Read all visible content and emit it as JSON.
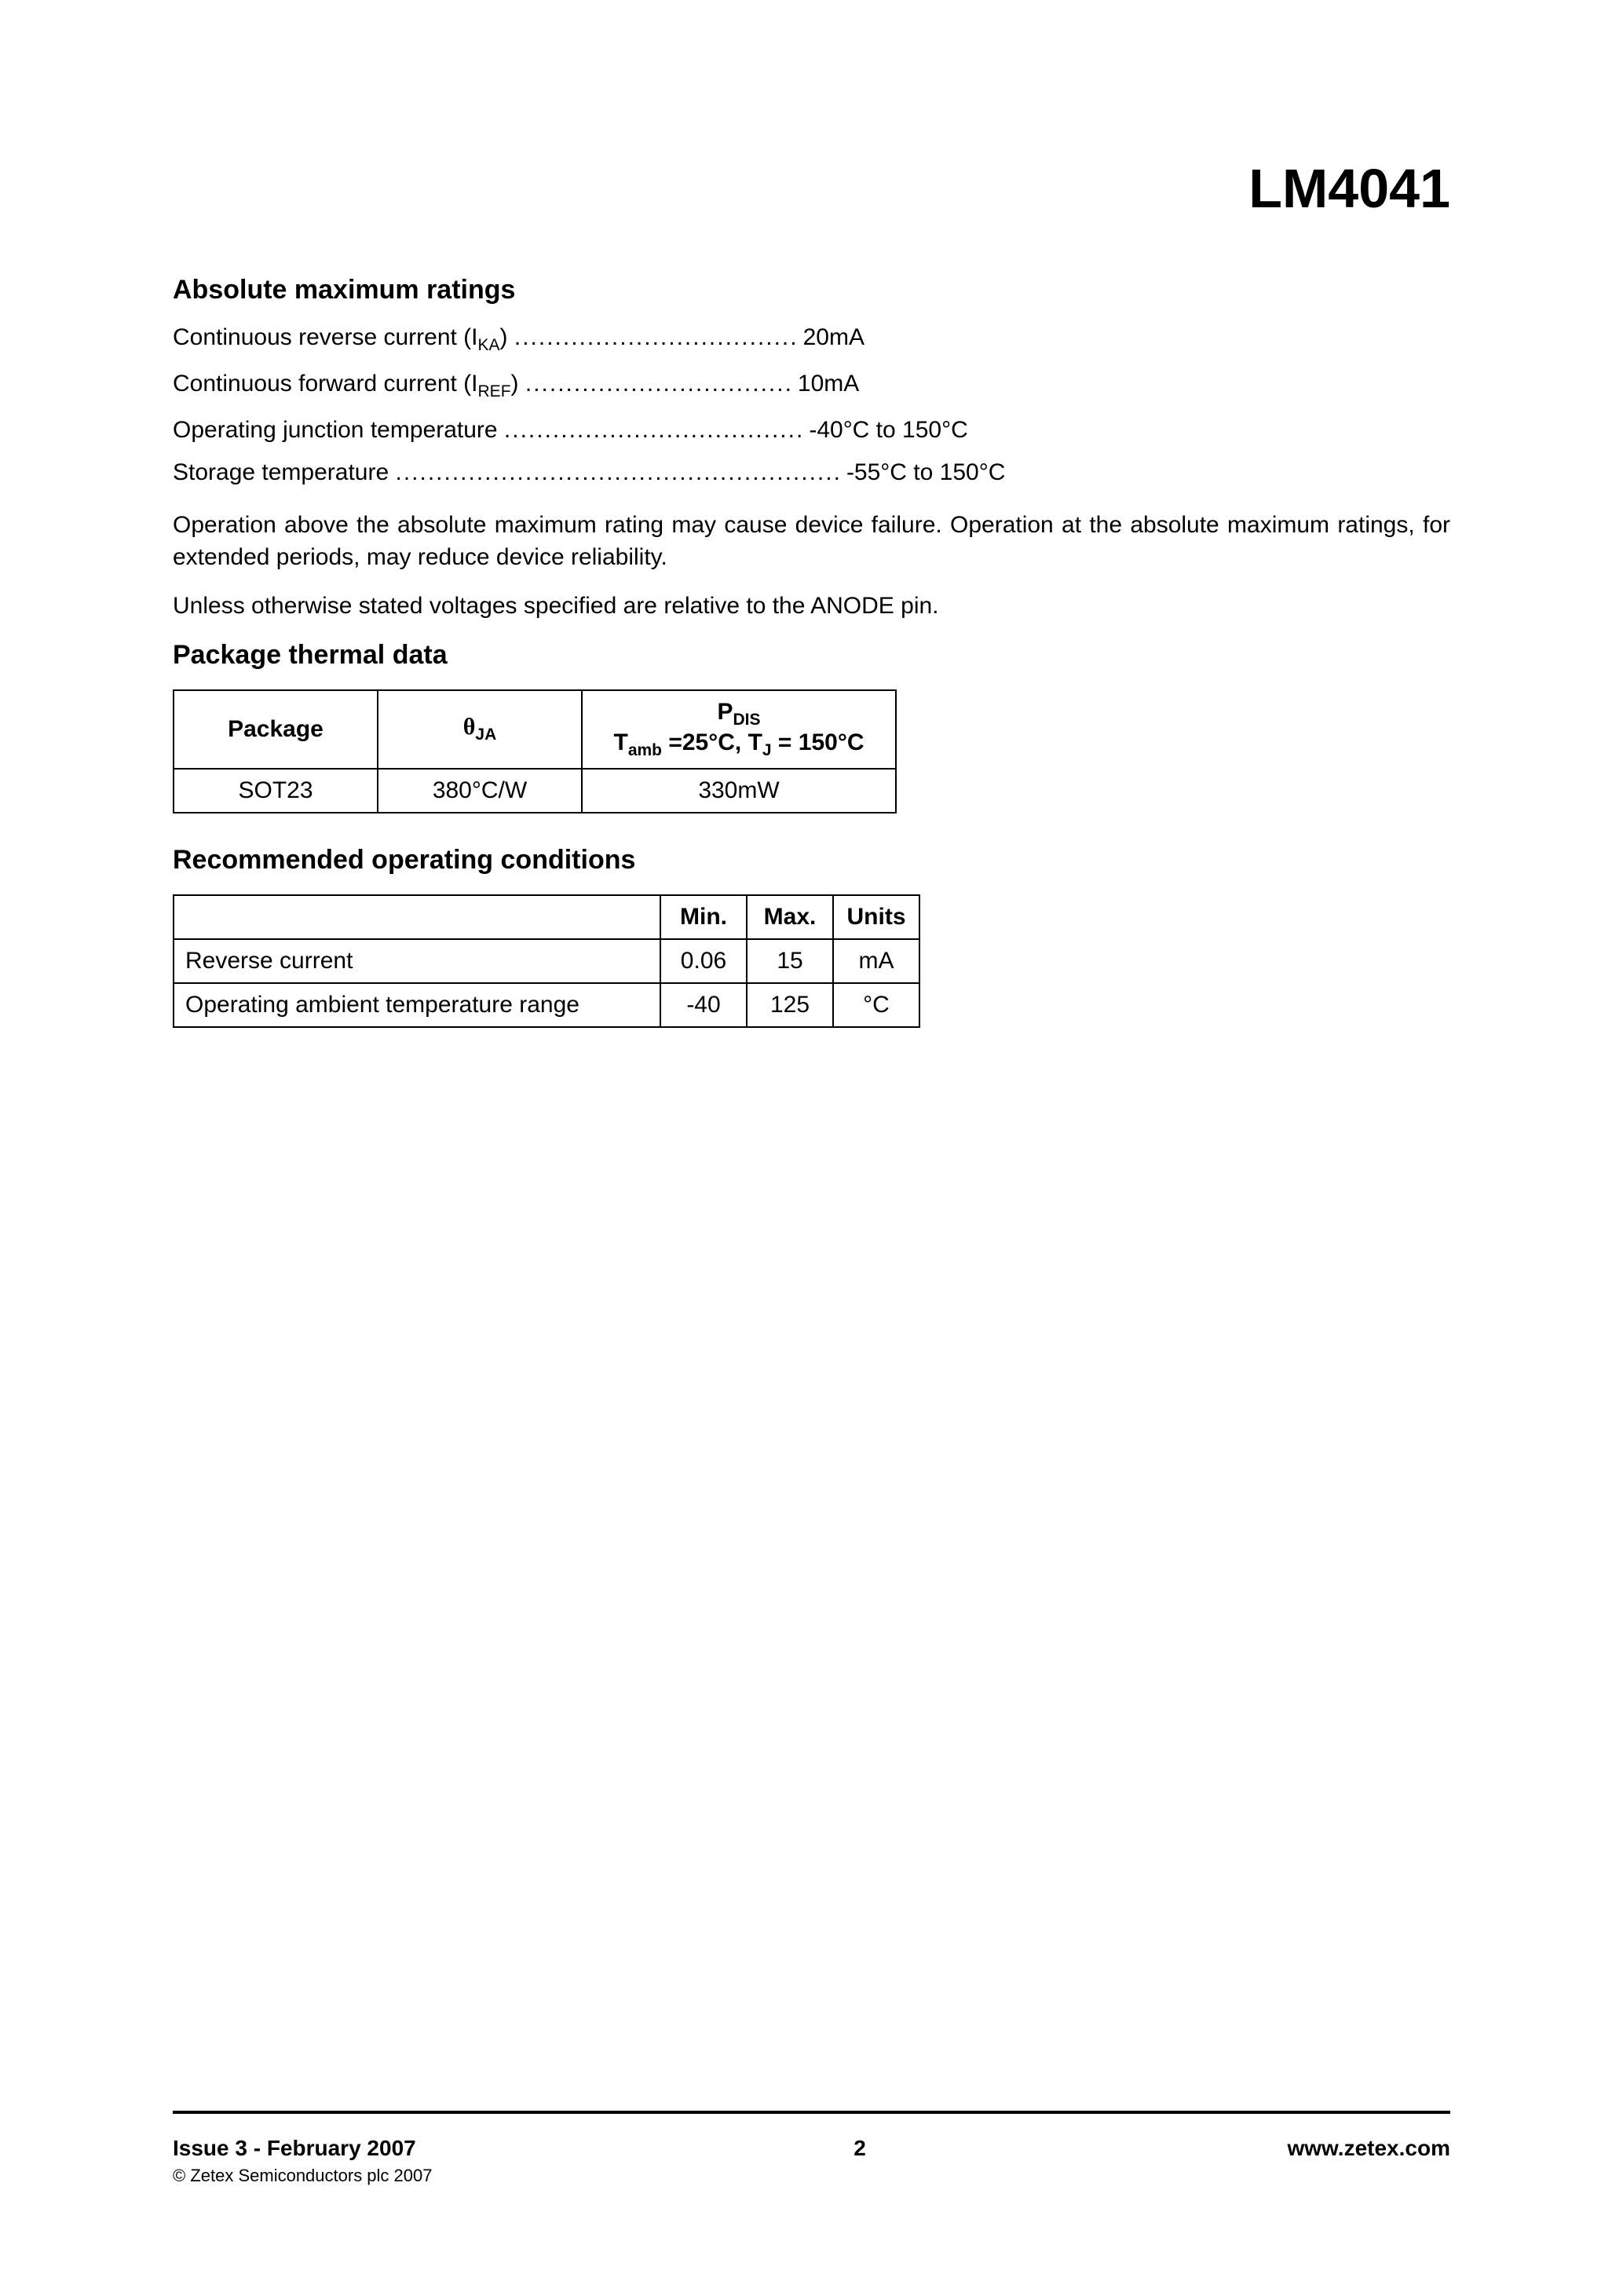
{
  "part_number": "LM4041",
  "sections": {
    "abs_max": {
      "title": "Absolute maximum ratings",
      "ratings": [
        {
          "label_pre": "Continuous reverse current (I",
          "label_sub": "KA",
          "label_post": ")",
          "dots": "...................................",
          "value": "20mA"
        },
        {
          "label_pre": "Continuous forward current (I",
          "label_sub": "REF",
          "label_post": ")",
          "dots": ".................................",
          "value": "10mA"
        },
        {
          "label_pre": "Operating junction temperature",
          "label_sub": "",
          "label_post": "",
          "dots": ".....................................",
          "value": "-40°C to 150°C"
        },
        {
          "label_pre": "Storage temperature",
          "label_sub": "",
          "label_post": "",
          "dots": ".......................................................",
          "value": "-55°C to 150°C"
        }
      ],
      "note1": "Operation above the absolute maximum rating may cause device failure. Operation at the absolute maximum ratings, for extended periods, may reduce device reliability.",
      "note2": "Unless otherwise stated voltages specified are relative to the ANODE pin."
    },
    "thermal": {
      "title": "Package thermal data",
      "headers": {
        "package": "Package",
        "theta_label": "θ",
        "theta_sub": "JA",
        "pdis_label": "P",
        "pdis_sub": "DIS",
        "pdis_cond_pre": "T",
        "pdis_cond_sub1": "amb",
        "pdis_cond_mid": " =25°C,  T",
        "pdis_cond_sub2": "J",
        "pdis_cond_post": " = 150°C"
      },
      "row": {
        "package": "SOT23",
        "theta": "380°C/W",
        "pdis": "330mW"
      }
    },
    "conditions": {
      "title": "Recommended operating conditions",
      "headers": {
        "param": "",
        "min": "Min.",
        "max": "Max.",
        "units": "Units"
      },
      "rows": [
        {
          "param": "Reverse current",
          "min": "0.06",
          "max": "15",
          "units": "mA"
        },
        {
          "param": "Operating ambient temperature range",
          "min": "-40",
          "max": "125",
          "units": "°C"
        }
      ]
    }
  },
  "footer": {
    "issue": "Issue 3 - February 2007",
    "copyright": "© Zetex Semiconductors plc 2007",
    "page": "2",
    "url": "www.zetex.com"
  }
}
